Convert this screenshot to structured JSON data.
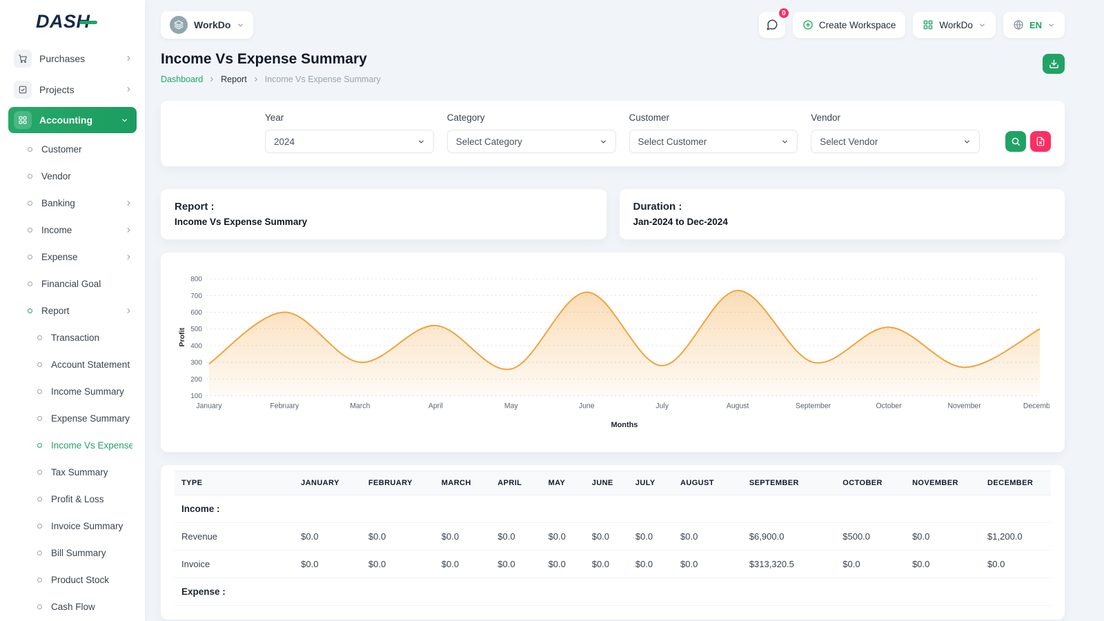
{
  "colors": {
    "accent": "#21a366",
    "danger": "#fd2e63",
    "chart_line": "#f2a33c"
  },
  "app": {
    "logo": "DASH"
  },
  "sidebar": {
    "top_items": [
      {
        "label": "Purchases",
        "icon": "cart-icon",
        "key": "cart",
        "active": false
      },
      {
        "label": "Projects",
        "icon": "clipboard-check-icon",
        "key": "clipboard",
        "active": false
      },
      {
        "label": "Accounting",
        "icon": "grid-icon",
        "key": "grid",
        "active": true
      }
    ],
    "accounting_items": [
      {
        "label": "Customer"
      },
      {
        "label": "Vendor"
      },
      {
        "label": "Banking",
        "chevron": true
      },
      {
        "label": "Income",
        "chevron": true
      },
      {
        "label": "Expense",
        "chevron": true
      },
      {
        "label": "Financial Goal"
      },
      {
        "label": "Report",
        "chevron": true,
        "open": true
      }
    ],
    "report_items": [
      {
        "label": "Transaction"
      },
      {
        "label": "Account Statement"
      },
      {
        "label": "Income Summary"
      },
      {
        "label": "Expense Summary"
      },
      {
        "label": "Income Vs Expense",
        "active": true
      },
      {
        "label": "Tax Summary"
      },
      {
        "label": "Profit & Loss"
      },
      {
        "label": "Invoice Summary"
      },
      {
        "label": "Bill Summary"
      },
      {
        "label": "Product Stock"
      },
      {
        "label": "Cash Flow"
      }
    ]
  },
  "header": {
    "workspace": {
      "label": "WorkDo"
    },
    "chat_badge": "0",
    "create_workspace_label": "Create Workspace",
    "workdo_label": "WorkDo",
    "language": "EN"
  },
  "page": {
    "title": "Income Vs Expense Summary",
    "breadcrumb": [
      "Dashboard",
      "Report",
      "Income Vs Expense Summary"
    ]
  },
  "filters": {
    "year": {
      "label": "Year",
      "value": "2024"
    },
    "category": {
      "label": "Category",
      "value": "Select Category"
    },
    "customer": {
      "label": "Customer",
      "value": "Select Customer"
    },
    "vendor": {
      "label": "Vendor",
      "value": "Select Vendor"
    }
  },
  "summary": {
    "report_label": "Report :",
    "report_value": "Income Vs Expense Summary",
    "duration_label": "Duration :",
    "duration_value": "Jan-2024 to Dec-2024"
  },
  "chart_data": {
    "type": "area",
    "title": "",
    "xlabel": "Months",
    "ylabel": "Profit",
    "ylim": [
      100,
      800
    ],
    "ytick_step": 100,
    "grid": true,
    "legend": false,
    "line_color": "#f2a33c",
    "categories": [
      "January",
      "February",
      "March",
      "April",
      "May",
      "June",
      "July",
      "August",
      "September",
      "October",
      "November",
      "December"
    ],
    "values": [
      290,
      600,
      300,
      520,
      260,
      720,
      280,
      730,
      300,
      510,
      270,
      500
    ]
  },
  "table": {
    "headers": [
      "TYPE",
      "JANUARY",
      "FEBRUARY",
      "MARCH",
      "APRIL",
      "MAY",
      "JUNE",
      "JULY",
      "AUGUST",
      "SEPTEMBER",
      "OCTOBER",
      "NOVEMBER",
      "DECEMBER"
    ],
    "rows": [
      {
        "section": true,
        "label": "Income :"
      },
      {
        "section": false,
        "label": "Revenue",
        "values": [
          "$0.0",
          "$0.0",
          "$0.0",
          "$0.0",
          "$0.0",
          "$0.0",
          "$0.0",
          "$0.0",
          "$6,900.0",
          "$500.0",
          "$0.0",
          "$1,200.0"
        ]
      },
      {
        "section": false,
        "label": "Invoice",
        "values": [
          "$0.0",
          "$0.0",
          "$0.0",
          "$0.0",
          "$0.0",
          "$0.0",
          "$0.0",
          "$0.0",
          "$313,320.5",
          "$0.0",
          "$0.0",
          "$0.0"
        ]
      },
      {
        "section": true,
        "label": "Expense :"
      }
    ]
  }
}
